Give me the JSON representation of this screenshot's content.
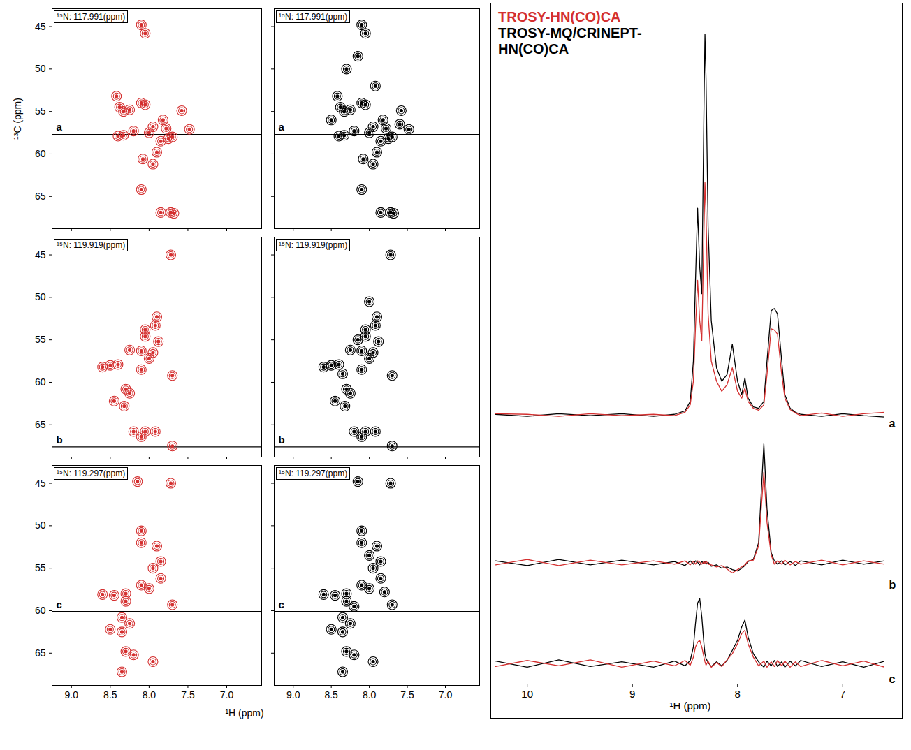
{
  "chart_data": [
    {
      "type": "scatter",
      "title": "¹⁵N: 117.991(ppm)",
      "label": "a",
      "color": "#d42f2f",
      "marker": "contour",
      "ylabel": "¹³C (ppm)",
      "x": [
        8.42,
        8.38,
        8.33,
        8.25,
        8.1,
        8.05,
        8.4,
        8.33,
        8.2,
        8.0,
        7.95,
        7.82,
        7.78,
        7.75,
        7.7,
        7.85,
        7.9,
        7.58,
        7.48,
        8.1,
        8.05,
        7.95,
        8.08,
        7.85,
        7.72,
        7.68,
        8.1
      ],
      "values": [
        53.2,
        54.5,
        55.0,
        54.8,
        54.0,
        54.2,
        57.9,
        57.8,
        57.3,
        57.5,
        56.8,
        56.0,
        57.0,
        58.2,
        58.0,
        58.5,
        59.8,
        54.9,
        57.1,
        44.8,
        45.8,
        61.2,
        60.6,
        66.9,
        66.9,
        67.0,
        64.2
      ],
      "xlim": [
        9.25,
        6.55
      ],
      "ylim": [
        68.8,
        42.9
      ],
      "xticks": [
        {
          "value": 9,
          "label": "9.0"
        },
        8.5,
        {
          "value": 8,
          "label": "8.0"
        },
        7.5,
        {
          "value": 7,
          "label": "7.0"
        }
      ],
      "yticks": [
        45,
        50,
        55,
        60,
        65
      ],
      "tick_labels": "y",
      "annotations": [
        {
          "type": "hline",
          "y": 57.7
        }
      ]
    },
    {
      "type": "scatter",
      "title": "¹⁵N: 117.991(ppm)",
      "label": "a",
      "color": "#000000",
      "marker": "contour",
      "x": [
        8.42,
        8.38,
        8.33,
        8.25,
        8.1,
        8.05,
        8.4,
        8.33,
        8.2,
        8.0,
        7.95,
        7.82,
        7.78,
        7.75,
        7.7,
        7.85,
        7.9,
        7.58,
        7.48,
        8.1,
        8.05,
        7.95,
        8.08,
        7.85,
        7.72,
        7.68,
        8.1,
        8.15,
        8.3,
        7.92,
        8.5,
        7.6
      ],
      "values": [
        53.2,
        54.5,
        55.0,
        54.8,
        54.0,
        54.2,
        57.9,
        57.8,
        57.3,
        57.5,
        56.8,
        56.0,
        57.0,
        58.2,
        58.0,
        58.5,
        59.8,
        54.9,
        57.1,
        44.8,
        45.8,
        61.2,
        60.6,
        66.9,
        66.9,
        67.0,
        64.2,
        48.5,
        50.0,
        52.0,
        56.0,
        56.5
      ],
      "xlim": [
        9.25,
        6.55
      ],
      "ylim": [
        68.8,
        42.9
      ],
      "xticks": [
        {
          "value": 9,
          "label": "9.0"
        },
        8.5,
        {
          "value": 8,
          "label": "8.0"
        },
        7.5,
        {
          "value": 7,
          "label": "7.0"
        }
      ],
      "yticks": [
        45,
        50,
        55,
        60,
        65
      ],
      "tick_labels": false,
      "annotations": [
        {
          "type": "hline",
          "y": 57.7
        }
      ]
    },
    {
      "type": "scatter",
      "title": "¹⁵N: 119.919(ppm)",
      "label": "b",
      "color": "#d42f2f",
      "marker": "contour",
      "x": [
        7.72,
        7.9,
        7.92,
        8.05,
        8.05,
        7.88,
        7.95,
        8.1,
        8.0,
        8.1,
        8.5,
        8.6,
        8.4,
        8.25,
        7.7,
        8.3,
        8.25,
        8.45,
        8.32,
        8.05,
        7.92,
        7.7,
        8.2,
        8.1
      ],
      "values": [
        45.0,
        52.3,
        53.3,
        53.8,
        54.6,
        55.2,
        56.5,
        56.3,
        57.2,
        58.5,
        58.0,
        58.2,
        57.9,
        56.2,
        59.2,
        60.8,
        61.3,
        62.2,
        62.8,
        65.8,
        65.8,
        67.5,
        65.8,
        66.4
      ],
      "xlim": [
        9.25,
        6.55
      ],
      "ylim": [
        68.8,
        42.9
      ],
      "xticks": [
        {
          "value": 9,
          "label": "9.0"
        },
        8.5,
        {
          "value": 8,
          "label": "8.0"
        },
        7.5,
        {
          "value": 7,
          "label": "7.0"
        }
      ],
      "yticks": [
        45,
        50,
        55,
        60,
        65
      ],
      "tick_labels": "y",
      "annotations": [
        {
          "type": "hline",
          "y": 67.6
        }
      ]
    },
    {
      "type": "scatter",
      "title": "¹⁵N: 119.919(ppm)",
      "label": "b",
      "color": "#000000",
      "marker": "contour",
      "x": [
        7.72,
        7.9,
        7.92,
        8.05,
        8.05,
        7.88,
        7.95,
        8.1,
        8.0,
        8.1,
        8.5,
        8.6,
        8.4,
        8.25,
        7.7,
        8.3,
        8.25,
        8.45,
        8.32,
        8.05,
        7.92,
        7.7,
        8.2,
        8.1,
        8.0,
        8.15,
        8.35
      ],
      "values": [
        45.0,
        52.3,
        53.3,
        53.8,
        54.6,
        55.2,
        56.5,
        56.3,
        57.2,
        58.5,
        58.0,
        58.2,
        57.9,
        56.2,
        59.2,
        60.8,
        61.3,
        62.2,
        62.8,
        65.8,
        65.8,
        67.5,
        65.8,
        66.4,
        50.5,
        55.0,
        59.0
      ],
      "xlim": [
        9.25,
        6.55
      ],
      "ylim": [
        68.8,
        42.9
      ],
      "xticks": [
        {
          "value": 9,
          "label": "9.0"
        },
        8.5,
        {
          "value": 8,
          "label": "8.0"
        },
        7.5,
        {
          "value": 7,
          "label": "7.0"
        }
      ],
      "yticks": [
        45,
        50,
        55,
        60,
        65
      ],
      "tick_labels": false,
      "annotations": [
        {
          "type": "hline",
          "y": 67.6
        }
      ]
    },
    {
      "type": "scatter",
      "title": "¹⁵N: 119.297(ppm)",
      "label": "c",
      "color": "#d42f2f",
      "marker": "contour",
      "xlabel": "¹H (ppm)",
      "x": [
        7.72,
        8.15,
        7.9,
        8.1,
        8.1,
        7.85,
        7.95,
        7.85,
        8.1,
        8.0,
        8.6,
        8.45,
        8.3,
        7.7,
        8.3,
        8.35,
        8.5,
        8.35,
        8.3,
        8.2,
        7.95,
        8.35,
        8.25
      ],
      "values": [
        45.0,
        44.8,
        52.4,
        50.6,
        52.0,
        54.2,
        55.0,
        56.2,
        57.0,
        57.4,
        58.1,
        58.2,
        58.0,
        59.3,
        58.9,
        60.8,
        62.2,
        62.5,
        64.8,
        65.2,
        66.0,
        67.2,
        61.5
      ],
      "xlim": [
        9.25,
        6.55
      ],
      "ylim": [
        68.8,
        42.9
      ],
      "xticks": [
        {
          "value": 9,
          "label": "9.0"
        },
        8.5,
        {
          "value": 8,
          "label": "8.0"
        },
        7.5,
        {
          "value": 7,
          "label": "7.0"
        }
      ],
      "yticks": [
        45,
        50,
        55,
        60,
        65
      ],
      "tick_labels": true,
      "annotations": [
        {
          "type": "hline",
          "y": 60.1
        }
      ]
    },
    {
      "type": "scatter",
      "title": "¹⁵N: 119.297(ppm)",
      "label": "c",
      "color": "#000000",
      "marker": "contour",
      "x": [
        7.72,
        8.15,
        7.9,
        8.1,
        8.1,
        7.85,
        7.95,
        7.85,
        8.1,
        8.0,
        8.6,
        8.45,
        8.3,
        7.7,
        8.3,
        8.35,
        8.5,
        8.35,
        8.3,
        8.2,
        7.95,
        8.35,
        8.25,
        8.0,
        8.2,
        7.8
      ],
      "values": [
        45.0,
        44.8,
        52.4,
        50.6,
        52.0,
        54.2,
        55.0,
        56.2,
        57.0,
        57.4,
        58.1,
        58.2,
        58.0,
        59.3,
        58.9,
        60.8,
        62.2,
        62.5,
        64.8,
        65.2,
        66.0,
        67.2,
        61.5,
        53.5,
        59.5,
        57.8
      ],
      "xlim": [
        9.25,
        6.55
      ],
      "ylim": [
        68.8,
        42.9
      ],
      "xticks": [
        {
          "value": 9,
          "label": "9.0"
        },
        8.5,
        {
          "value": 8,
          "label": "8.0"
        },
        7.5,
        {
          "value": 7,
          "label": "7.0"
        }
      ],
      "yticks": [
        45,
        50,
        55,
        60,
        65
      ],
      "tick_labels": "x",
      "annotations": [
        {
          "type": "hline",
          "y": 60.1
        }
      ]
    },
    {
      "type": "line",
      "label": "a",
      "legend": "top-left",
      "tick_labels": false,
      "xlim": [
        10.3,
        6.6
      ],
      "ylim": [
        -2,
        60
      ],
      "x": [
        10.3,
        10,
        9.7,
        9.4,
        9.1,
        8.8,
        8.6,
        8.5,
        8.45,
        8.42,
        8.4,
        8.38,
        8.36,
        8.34,
        8.32,
        8.31,
        8.3,
        8.28,
        8.25,
        8.2,
        8.15,
        8.1,
        8.05,
        8,
        7.96,
        7.93,
        7.9,
        7.85,
        7.8,
        7.75,
        7.72,
        7.68,
        7.65,
        7.62,
        7.58,
        7.55,
        7.5,
        7.45,
        7.4,
        7.2,
        7,
        6.8,
        6.6
      ],
      "series": [
        {
          "name": "TROSY-HN(CO)CA",
          "color": "#d42f2f",
          "values": [
            0.2,
            0.1,
            -0.2,
            0.2,
            -0.1,
            0.1,
            -0.1,
            0.4,
            1.5,
            5,
            13,
            20,
            14,
            11,
            27,
            34.5,
            30,
            15,
            8,
            5,
            3.5,
            4.5,
            7,
            3.5,
            2.5,
            4,
            2,
            1,
            0.7,
            1.5,
            6,
            12.8,
            12.6,
            12,
            6,
            2.5,
            0.8,
            0.3,
            -0.1,
            0.3,
            -0.2,
            0.2,
            0.4
          ]
        },
        {
          "name": "TROSY-MQ/CRINEPT-HN(CO)CA",
          "color": "#000000",
          "values": [
            0.1,
            -0.2,
            0.2,
            -0.1,
            0.2,
            -0.2,
            0.1,
            0.6,
            2,
            8,
            20,
            30.7,
            22,
            18,
            45,
            56.5,
            50,
            28,
            14,
            7,
            5,
            6,
            10.5,
            5,
            3,
            5.5,
            2.5,
            1.2,
            1,
            2,
            8,
            15.5,
            15.8,
            15,
            8,
            3,
            1,
            0.4,
            0.1,
            -0.2,
            0.2,
            -0.1,
            -0.3
          ]
        }
      ]
    },
    {
      "type": "line",
      "label": "b",
      "tick_labels": false,
      "xlim": [
        10.3,
        6.6
      ],
      "ylim": [
        -4,
        20
      ],
      "x": [
        10.3,
        10,
        9.7,
        9.4,
        9.1,
        8.8,
        8.6,
        8.5,
        8.45,
        8.42,
        8.4,
        8.38,
        8.36,
        8.34,
        8.32,
        8.31,
        8.3,
        8.28,
        8.25,
        8.2,
        8.15,
        8.1,
        8.05,
        8,
        7.96,
        7.93,
        7.9,
        7.85,
        7.8,
        7.75,
        7.72,
        7.68,
        7.65,
        7.62,
        7.58,
        7.55,
        7.5,
        7.45,
        7.4,
        7.2,
        7,
        6.8,
        6.6
      ],
      "series": [
        {
          "color": "#d42f2f",
          "values": [
            -0.3,
            0.5,
            -0.4,
            0.4,
            -0.3,
            0.3,
            -0.2,
            0.3,
            -0.3,
            0.2,
            -0.2,
            0.3,
            0.1,
            -0.2,
            0.2,
            -0.1,
            0.3,
            -0.2,
            -0.3,
            -0.6,
            -0.4,
            -0.9,
            -1.5,
            -1,
            -0.6,
            -0.3,
            0.3,
            0.4,
            2.5,
            13.5,
            6,
            1.2,
            -0.2,
            0.3,
            -0.2,
            0.4,
            -0.3,
            0.2,
            -0.2,
            0.4,
            -0.3,
            0.3,
            -0.2
          ]
        },
        {
          "color": "#000000",
          "values": [
            0.3,
            -0.4,
            0.5,
            -0.3,
            0.4,
            -0.3,
            0.2,
            -0.4,
            0.3,
            -0.2,
            0.3,
            0.1,
            -0.3,
            0.2,
            -0.1,
            0.2,
            -0.2,
            0.1,
            -0.5,
            -0.3,
            -0.8,
            -0.6,
            -1,
            -1.2,
            -0.8,
            -0.4,
            0.2,
            0.5,
            3,
            17.7,
            8,
            1.5,
            0.3,
            -0.2,
            0.3,
            -0.3,
            0.2,
            -0.4,
            0.3,
            -0.3,
            0.4,
            -0.2,
            0.3
          ]
        }
      ]
    },
    {
      "type": "line",
      "label": "c",
      "tick_labels": "x",
      "xlabel": "¹H (ppm)",
      "xlim": [
        10.3,
        6.6
      ],
      "ylim": [
        -3,
        11
      ],
      "xticks": [
        10,
        9,
        8,
        7
      ],
      "x": [
        10.3,
        10,
        9.7,
        9.4,
        9.1,
        8.8,
        8.6,
        8.5,
        8.45,
        8.42,
        8.4,
        8.38,
        8.36,
        8.34,
        8.32,
        8.31,
        8.3,
        8.28,
        8.25,
        8.2,
        8.15,
        8.1,
        8.05,
        8,
        7.96,
        7.93,
        7.9,
        7.85,
        7.8,
        7.75,
        7.72,
        7.68,
        7.65,
        7.62,
        7.58,
        7.55,
        7.5,
        7.45,
        7.4,
        7.2,
        7,
        6.8,
        6.6
      ],
      "series": [
        {
          "color": "#d42f2f",
          "values": [
            -0.4,
            0.5,
            -0.3,
            0.6,
            -0.5,
            0.4,
            -0.3,
            0.5,
            -0.2,
            1,
            2.5,
            3.2,
            3.5,
            2.5,
            1,
            0.3,
            -0.2,
            0.4,
            -0.5,
            0.2,
            -0.4,
            0.6,
            1.5,
            3,
            4.5,
            5,
            3,
            1,
            -0.3,
            0.4,
            -0.5,
            0.3,
            -0.4,
            0.5,
            -0.3,
            0.4,
            -0.5,
            0.3,
            -0.4,
            0.5,
            -0.3,
            0.4,
            -0.5
          ]
        },
        {
          "color": "#000000",
          "values": [
            0.4,
            -0.5,
            0.6,
            -0.4,
            0.3,
            -0.5,
            0.4,
            -0.3,
            0.5,
            2.5,
            6,
            9,
            9.7,
            7,
            3,
            1.5,
            0.8,
            0.2,
            -0.4,
            0.3,
            -0.3,
            0.5,
            2,
            3.5,
            5.5,
            6.5,
            4,
            1.5,
            0.3,
            -0.5,
            0.4,
            -0.3,
            0.5,
            -0.4,
            0.3,
            -0.5,
            0.4,
            -0.3,
            0.5,
            -0.4,
            0.3,
            -0.5,
            0.4
          ]
        }
      ]
    }
  ]
}
